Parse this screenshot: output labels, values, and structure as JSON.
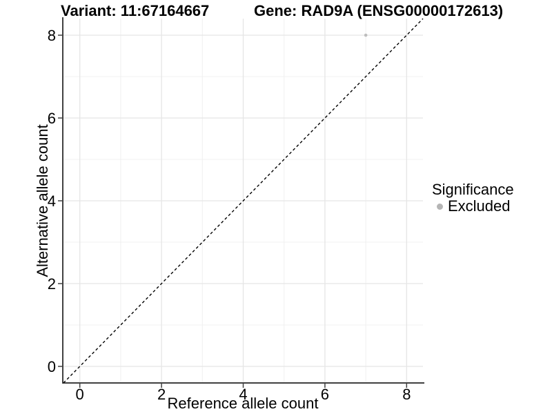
{
  "chart_data": {
    "type": "scatter",
    "title_left": "Variant: 11:67164667",
    "title_right": "Gene: RAD9A (ENSG00000172613)",
    "xlabel": "Reference allele count",
    "ylabel": "Alternative allele count",
    "xlim": [
      -0.4,
      8.4
    ],
    "ylim": [
      -0.4,
      8.4
    ],
    "x_ticks": [
      0,
      2,
      4,
      6,
      8
    ],
    "y_ticks": [
      0,
      2,
      4,
      6,
      8
    ],
    "x_minor": [
      1,
      3,
      5,
      7
    ],
    "y_minor": [
      1,
      3,
      5,
      7
    ],
    "grid": true,
    "reference_line": {
      "style": "dashed",
      "from": {
        "x": -0.4,
        "y": -0.4
      },
      "to": {
        "x": 8.4,
        "y": 8.4
      },
      "color": "#000000"
    },
    "series": [
      {
        "name": "Excluded",
        "color": "#bdbdbd",
        "points": [
          {
            "x": 7,
            "y": 8
          }
        ]
      }
    ],
    "legend": {
      "title": "Significance",
      "position": "right",
      "items": [
        {
          "label": "Excluded",
          "color": "#b5b5b5"
        }
      ]
    },
    "style": {
      "background": "#ffffff",
      "grid_major": "#e5e5e5",
      "grid_minor": "#f0f0f0",
      "axis_line": "#404040",
      "tick_mark": "#404040",
      "text_color": "#000000"
    }
  }
}
